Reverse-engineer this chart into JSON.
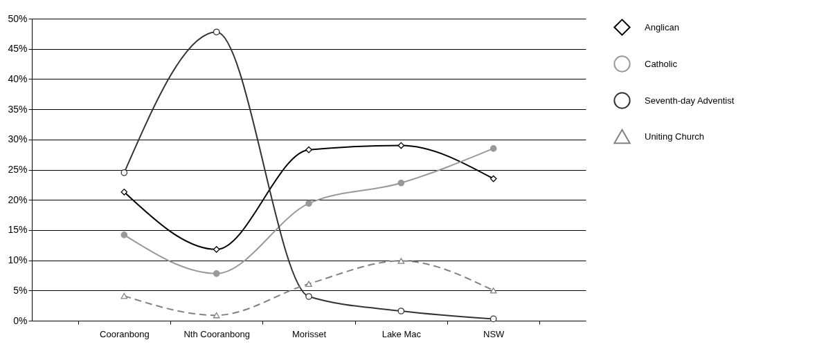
{
  "chart_data": {
    "type": "line",
    "categories": [
      "Cooranbong",
      "Nth Cooranbong",
      "Morisset",
      "Lake Mac",
      "NSW"
    ],
    "series": [
      {
        "name": "Anglican",
        "color": "#000000",
        "marker": "diamond",
        "line_style": "solid",
        "values": [
          21.3,
          11.8,
          28.3,
          29.0,
          23.5
        ]
      },
      {
        "name": "Catholic",
        "color": "#999999",
        "marker": "circle",
        "line_style": "solid",
        "values": [
          14.2,
          7.8,
          19.4,
          22.8,
          28.5
        ]
      },
      {
        "name": "Seventh-day Adventist",
        "color": "#333333",
        "marker": "circle",
        "line_style": "solid",
        "values": [
          24.5,
          47.8,
          4.0,
          1.6,
          0.3
        ]
      },
      {
        "name": "Uniting Church",
        "color": "#808080",
        "marker": "triangle",
        "line_style": "dashed",
        "values": [
          4.1,
          0.9,
          6.1,
          9.9,
          5.0
        ]
      }
    ],
    "ylim": [
      0,
      50
    ],
    "yticks": [
      {
        "value": 0,
        "label": "0%"
      },
      {
        "value": 5,
        "label": "5%"
      },
      {
        "value": 10,
        "label": "10%"
      },
      {
        "value": 15,
        "label": "15%"
      },
      {
        "value": 20,
        "label": "20%"
      },
      {
        "value": 25,
        "label": "25%"
      },
      {
        "value": 30,
        "label": "30%"
      },
      {
        "value": 35,
        "label": "35%"
      },
      {
        "value": 40,
        "label": "40%"
      },
      {
        "value": 45,
        "label": "45%"
      },
      {
        "value": 50,
        "label": "50%"
      }
    ],
    "grid": "y",
    "legend": "right"
  }
}
